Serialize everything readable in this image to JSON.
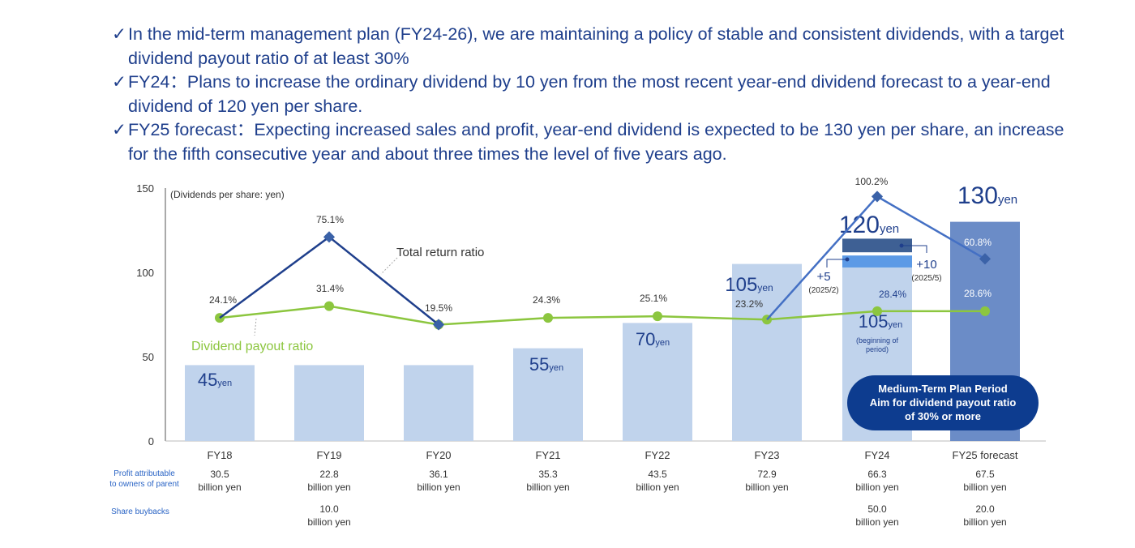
{
  "bullets": [
    "In the mid-term management plan (FY24-26), we are maintaining a policy of stable and consistent dividends, with a target dividend payout ratio of at least 30%",
    "FY24：Plans to increase the ordinary dividend by 10 yen from the most recent year-end dividend forecast to a year-end dividend of 120 yen per share.",
    "FY25 forecast：Expecting increased sales and profit, year-end dividend is expected to be 130 yen per share, an increase for the fifth consecutive year and about three times the level of five years ago."
  ],
  "check_mark": "✓",
  "chart_data": {
    "type": "bar",
    "unit_label": "(Dividends per share: yen)",
    "ylim": [
      0,
      150
    ],
    "yticks": [
      0,
      50,
      100,
      150
    ],
    "categories": [
      "FY18",
      "FY19",
      "FY20",
      "FY21",
      "FY22",
      "FY23",
      "FY24",
      "FY25 forecast"
    ],
    "dividends": [
      45,
      45,
      45,
      55,
      70,
      105,
      120,
      130
    ],
    "bar_labels": [
      {
        "index": 0,
        "num": "45",
        "unit": "yen"
      },
      {
        "index": 3,
        "num": "55",
        "unit": "yen"
      },
      {
        "index": 4,
        "num": "70",
        "unit": "yen"
      },
      {
        "index": 5,
        "num": "105",
        "unit": "yen"
      },
      {
        "index": 6,
        "num": "120",
        "unit": "yen"
      },
      {
        "index": 7,
        "num": "130",
        "unit": "yen"
      }
    ],
    "fy24_breakdown": {
      "beginning_value": 105,
      "beginning_num": "105",
      "beginning_unit": "yen",
      "beginning_note_1": "(beginning of",
      "beginning_note_2": "period)",
      "step1": {
        "label": "+5",
        "date": "(2025/2)",
        "value": 5
      },
      "step2": {
        "label": "+10",
        "date": "(2025/5)",
        "value": 10
      }
    },
    "series": [
      {
        "name": "Dividend payout ratio",
        "color": "#8cc63f",
        "values": [
          24.1,
          31.4,
          19.5,
          24.3,
          25.1,
          23.2,
          28.4,
          28.6
        ],
        "labels": [
          "24.1%",
          "31.4%",
          "19.5%",
          "24.3%",
          "25.1%",
          "23.2%",
          "28.4%",
          "28.6%"
        ],
        "plot_y": [
          73,
          80,
          69,
          73,
          74,
          72,
          77,
          77
        ]
      },
      {
        "name": "Total return ratio",
        "color": "#1f3f8c",
        "segments": [
          {
            "points": [
              [
                0,
                73
              ],
              [
                1,
                121
              ],
              [
                2,
                69
              ]
            ],
            "labels": [
              null,
              "75.1%",
              null
            ]
          },
          {
            "points": [
              [
                5,
                72
              ],
              [
                6,
                145
              ],
              [
                7,
                108
              ]
            ],
            "labels": [
              null,
              "100.2%",
              "60.8%"
            ]
          }
        ]
      }
    ],
    "legend": {
      "payout_label": "Dividend payout ratio",
      "total_return_label": "Total return ratio"
    },
    "medium_term_box": {
      "line1": "Medium-Term Plan Period",
      "line2": "Aim for dividend payout ratio",
      "line3": "of 30% or more"
    },
    "table": {
      "profit_label_1": "Profit attributable",
      "profit_label_2": "to owners of parent",
      "buyback_label": "Share buybacks",
      "unit": "billion yen",
      "profit": [
        "30.5",
        "22.8",
        "36.1",
        "35.3",
        "43.5",
        "72.9",
        "66.3",
        "67.5"
      ],
      "buybacks": [
        null,
        "10.0",
        null,
        null,
        null,
        null,
        "50.0",
        "20.0"
      ]
    },
    "colors": {
      "bar_light": "#c0d3ec",
      "bar_dark": "#6b8cc7",
      "bar_fy24_top": "#3e6094",
      "bar_fy24_mid": "#5c9ae6",
      "total_return": "#1f3f8c",
      "total_return_marker": "#3b62a8",
      "payout": "#8cc63f",
      "text_dark": "#333333",
      "text_blue": "#1f3f8c",
      "axis": "#555555",
      "box": "#0d3c8f"
    }
  }
}
